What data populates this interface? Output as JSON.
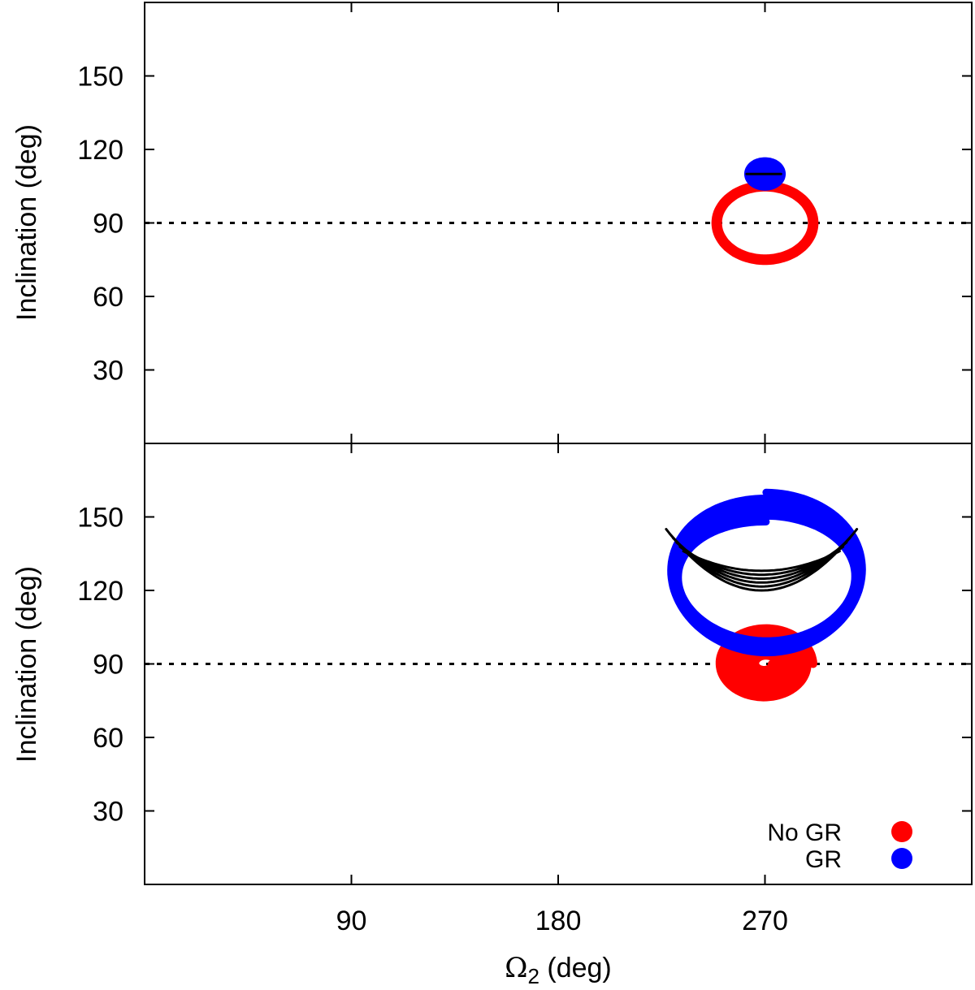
{
  "chart_data": [
    {
      "type": "line",
      "panel": "top",
      "ylabel": "Inclination (deg)",
      "xlim": [
        0,
        360
      ],
      "ylim": [
        0,
        180
      ],
      "yticks": [
        30,
        60,
        90,
        120,
        150
      ],
      "xticks": [
        90,
        180,
        270
      ],
      "reference_line": {
        "y": 90,
        "style": "dotted",
        "color": "#000000"
      },
      "series": [
        {
          "name": "No GR",
          "color": "#ff0000",
          "shape": "loop",
          "center": [
            270,
            90
          ],
          "radius_x": 21,
          "radius_y": 15
        },
        {
          "name": "GR",
          "color": "#0000ff",
          "shape": "loop",
          "center": [
            270,
            110
          ],
          "radius_x": 5.5,
          "radius_y": 3.5
        },
        {
          "name": "",
          "color": "#000000",
          "shape": "segment",
          "x": [
            262,
            277
          ],
          "y": [
            110,
            110
          ]
        }
      ]
    },
    {
      "type": "line",
      "panel": "bottom",
      "ylabel": "Inclination (deg)",
      "xlabel": "Ω2 (deg)",
      "xlim": [
        0,
        360
      ],
      "ylim": [
        0,
        180
      ],
      "yticks": [
        30,
        60,
        90,
        120,
        150
      ],
      "xticks": [
        90,
        180,
        270
      ],
      "reference_line": {
        "y": 90,
        "style": "dotted",
        "color": "#000000"
      },
      "series": [
        {
          "name": "No GR",
          "color": "#ff0000",
          "shape": "spiral",
          "center": [
            270,
            90
          ],
          "radius_x_range": [
            3,
            21
          ],
          "radius_y_range": [
            2,
            15
          ]
        },
        {
          "name": "GR",
          "color": "#0000ff",
          "shape": "spiral",
          "x_range": [
            228,
            313
          ],
          "y_range": [
            93,
            160
          ]
        },
        {
          "name": "",
          "color": "#000000",
          "shape": "arcs",
          "x_range": [
            227,
            310
          ],
          "y_range": [
            120,
            145
          ]
        }
      ],
      "legend": {
        "position": "bottom-right",
        "entries": [
          {
            "label": "No GR",
            "color": "#ff0000"
          },
          {
            "label": "GR",
            "color": "#0000ff"
          }
        ]
      }
    }
  ],
  "legend": {
    "no_gr": "No GR",
    "gr": "GR"
  },
  "axes": {
    "ylabel": "Inclination (deg)",
    "xlabel_main": "Ω",
    "xlabel_sub": "2",
    "xlabel_unit": " (deg)"
  }
}
